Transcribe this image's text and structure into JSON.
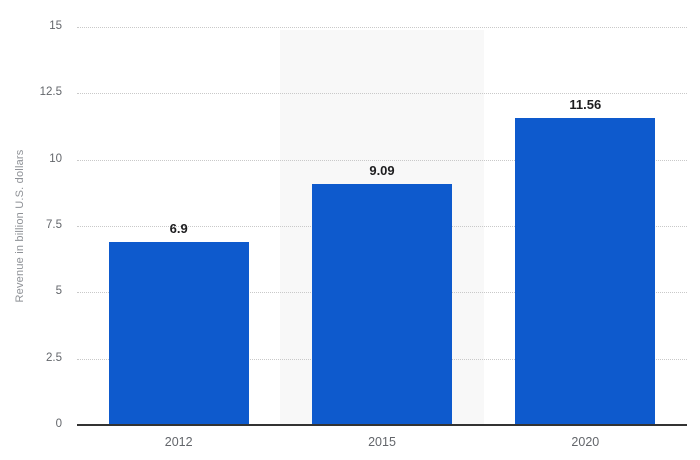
{
  "chart_data": {
    "type": "bar",
    "title": "",
    "categories": [
      "2012",
      "2015",
      "2020"
    ],
    "values": [
      6.9,
      9.09,
      11.56
    ],
    "value_labels": [
      "6.9",
      "9.09",
      "11.56"
    ],
    "xlabel": "",
    "ylabel": "Revenue in billion U.S. dollars",
    "ylim": [
      0,
      15
    ],
    "yticks": [
      "0",
      "2.5",
      "5",
      "7.5",
      "10",
      "12.5",
      "15"
    ],
    "grid": true,
    "legend": false,
    "highlighted_category_index": 1,
    "colors": {
      "bar": "#0e5acd",
      "highlight_band": "#f8f8f8",
      "gridline": "#c9c9c9",
      "axis_line": "#333333",
      "tick_label": "#63666b",
      "value_label": "#1d1d1f",
      "y_axis_title": "#8e9196",
      "background": "#ffffff"
    }
  }
}
